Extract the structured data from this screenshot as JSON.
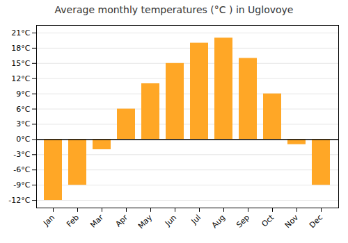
{
  "chart_data": {
    "type": "bar",
    "title": "Average monthly temperatures (°C ) in Uglovoye",
    "categories": [
      "Jan",
      "Feb",
      "Mar",
      "Apr",
      "May",
      "Jun",
      "Jul",
      "Aug",
      "Sep",
      "Oct",
      "Nov",
      "Dec"
    ],
    "values": [
      -12,
      -9,
      -2,
      6,
      11,
      15,
      19,
      20,
      16,
      9,
      -1,
      -9
    ],
    "color": "#FFA726",
    "ylim": [
      -13.5,
      22.5
    ],
    "yticks": [
      {
        "value": -12,
        "label": "-12°C"
      },
      {
        "value": -9,
        "label": "-9°C"
      },
      {
        "value": -6,
        "label": "-6°C"
      },
      {
        "value": -3,
        "label": "-3°C"
      },
      {
        "value": 0,
        "label": "0°C"
      },
      {
        "value": 3,
        "label": "3°C"
      },
      {
        "value": 6,
        "label": "6°C"
      },
      {
        "value": 9,
        "label": "9°C"
      },
      {
        "value": 12,
        "label": "12°C"
      },
      {
        "value": 15,
        "label": "15°C"
      },
      {
        "value": 18,
        "label": "18°C"
      },
      {
        "value": 21,
        "label": "21°C"
      }
    ],
    "grid": true
  }
}
